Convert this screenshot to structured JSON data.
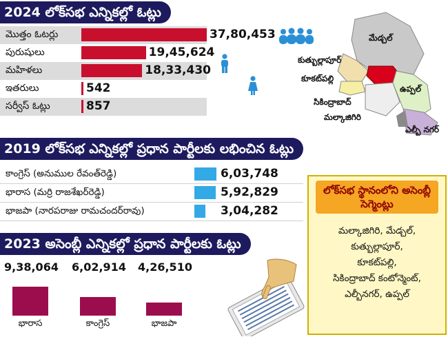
{
  "sections": {
    "s2024_title": "2024 లోక్‌సభ ఎన్నికల్లో ఓట్లు",
    "s2019_title": "2019 లోక్‌సభ ఎన్నికల్లో ప్రధాన పార్టీలకు లభించిన ఓట్లు",
    "s2023_title": "2023 అసెంబ్లీ ఎన్నికల్లో ప్రధాన పార్టీలకు ఓట్లు"
  },
  "chart_data": [
    {
      "type": "bar",
      "title": "2024 లోక్‌సభ ఎన్నికల్లో ఓట్లు",
      "categories": [
        "మొత్తం ఓటర్లు",
        "పురుషులు",
        "మహిళలు",
        "ఇతరులు",
        "సర్వీస్ ఓట్లు"
      ],
      "values": [
        3780453,
        1945624,
        1833430,
        542,
        857
      ],
      "labels": [
        "37,80,453",
        "19,45,624",
        "18,33,430",
        "542",
        "857"
      ],
      "bar_color": "#c8102e"
    },
    {
      "type": "bar",
      "title": "2019 లోక్‌సభ ఎన్నికల్లో ప్రధాన పార్టీలకు లభించిన ఓట్లు",
      "categories": [
        "కాంగ్రెస్ (అనుముల రేవంత్‌రెడ్డి)",
        "భారాస (మర్రి రాజశేఖర్‌రెడ్డి)",
        "భాజపా (నారపరాజు రామచందర్‌రావు)"
      ],
      "values": [
        603748,
        592829,
        304282
      ],
      "labels": [
        "6,03,748",
        "5,92,829",
        "3,04,282"
      ],
      "bar_color": "#33a9e6"
    },
    {
      "type": "bar",
      "title": "2023 అసెంబ్లీ ఎన్నికల్లో ప్రధాన పార్టీలకు ఓట్లు",
      "categories": [
        "భారాస",
        "కాంగ్రెస్",
        "భాజపా"
      ],
      "values": [
        938064,
        602914,
        426510
      ],
      "labels": [
        "9,38,064",
        "6,02,914",
        "4,26,510"
      ],
      "bar_color": "#9c0d4e"
    }
  ],
  "map": {
    "regions": [
      "మేడ్చల్",
      "కుత్బుల్లాపూర్",
      "కూకట్‌పల్లి",
      "ఉప్పల్",
      "సికింద్రాబాద్",
      "మల్కాజిగిరి",
      "ఎల్బీ నగర్"
    ]
  },
  "segments_box": {
    "heading": "లోక్‌సభ స్థానంలోని అసెంబ్లీ సెగ్మెంట్లు",
    "lines": [
      "మల్కాజిగిరి, మేడ్చల్,",
      "కుత్బుల్లాపూర్,",
      "కూకట్‌పల్లి,",
      "సికింద్రాబాద్ కంటోన్మెంట్,",
      "ఎల్బీనగర్, ఉప్పల్"
    ]
  },
  "colors": {
    "banner": "#1e1a5e",
    "bar_2024": "#c8102e",
    "bar_2019": "#33a9e6",
    "bar_2023": "#9c0d4e",
    "icon": "#2b8fd6"
  }
}
